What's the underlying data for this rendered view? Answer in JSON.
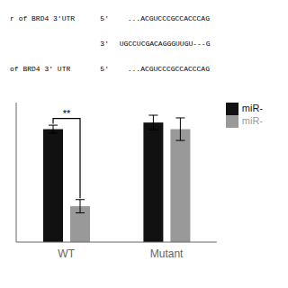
{
  "chart_data": {
    "type": "bar",
    "categories": [
      "WT",
      "Mutant"
    ],
    "series": [
      {
        "name": "miR-",
        "color": "#111111",
        "values": [
          0.85,
          0.9
        ],
        "errors": [
          0.03,
          0.055
        ]
      },
      {
        "name": "miR-",
        "color": "#999999",
        "values": [
          0.27,
          0.85
        ],
        "errors": [
          0.05,
          0.085
        ]
      }
    ],
    "ylim": [
      0,
      1.05
    ],
    "tick_labels": "x",
    "legend": "right",
    "grid": false,
    "annotations": [
      {
        "text": [
          "r of BRD4 3'UTR",
          "5'",
          "...ACGUCCCGCCACCCAG"
        ]
      },
      {
        "text": [
          "3'",
          "UGCCUCGACAGGGUUGU---G"
        ]
      },
      {
        "text": [
          "of BRD4 3' UTR",
          "5'",
          "...ACGUCCCGCCACCCAG"
        ]
      },
      {
        "text": "**",
        "category": "WT"
      }
    ]
  }
}
